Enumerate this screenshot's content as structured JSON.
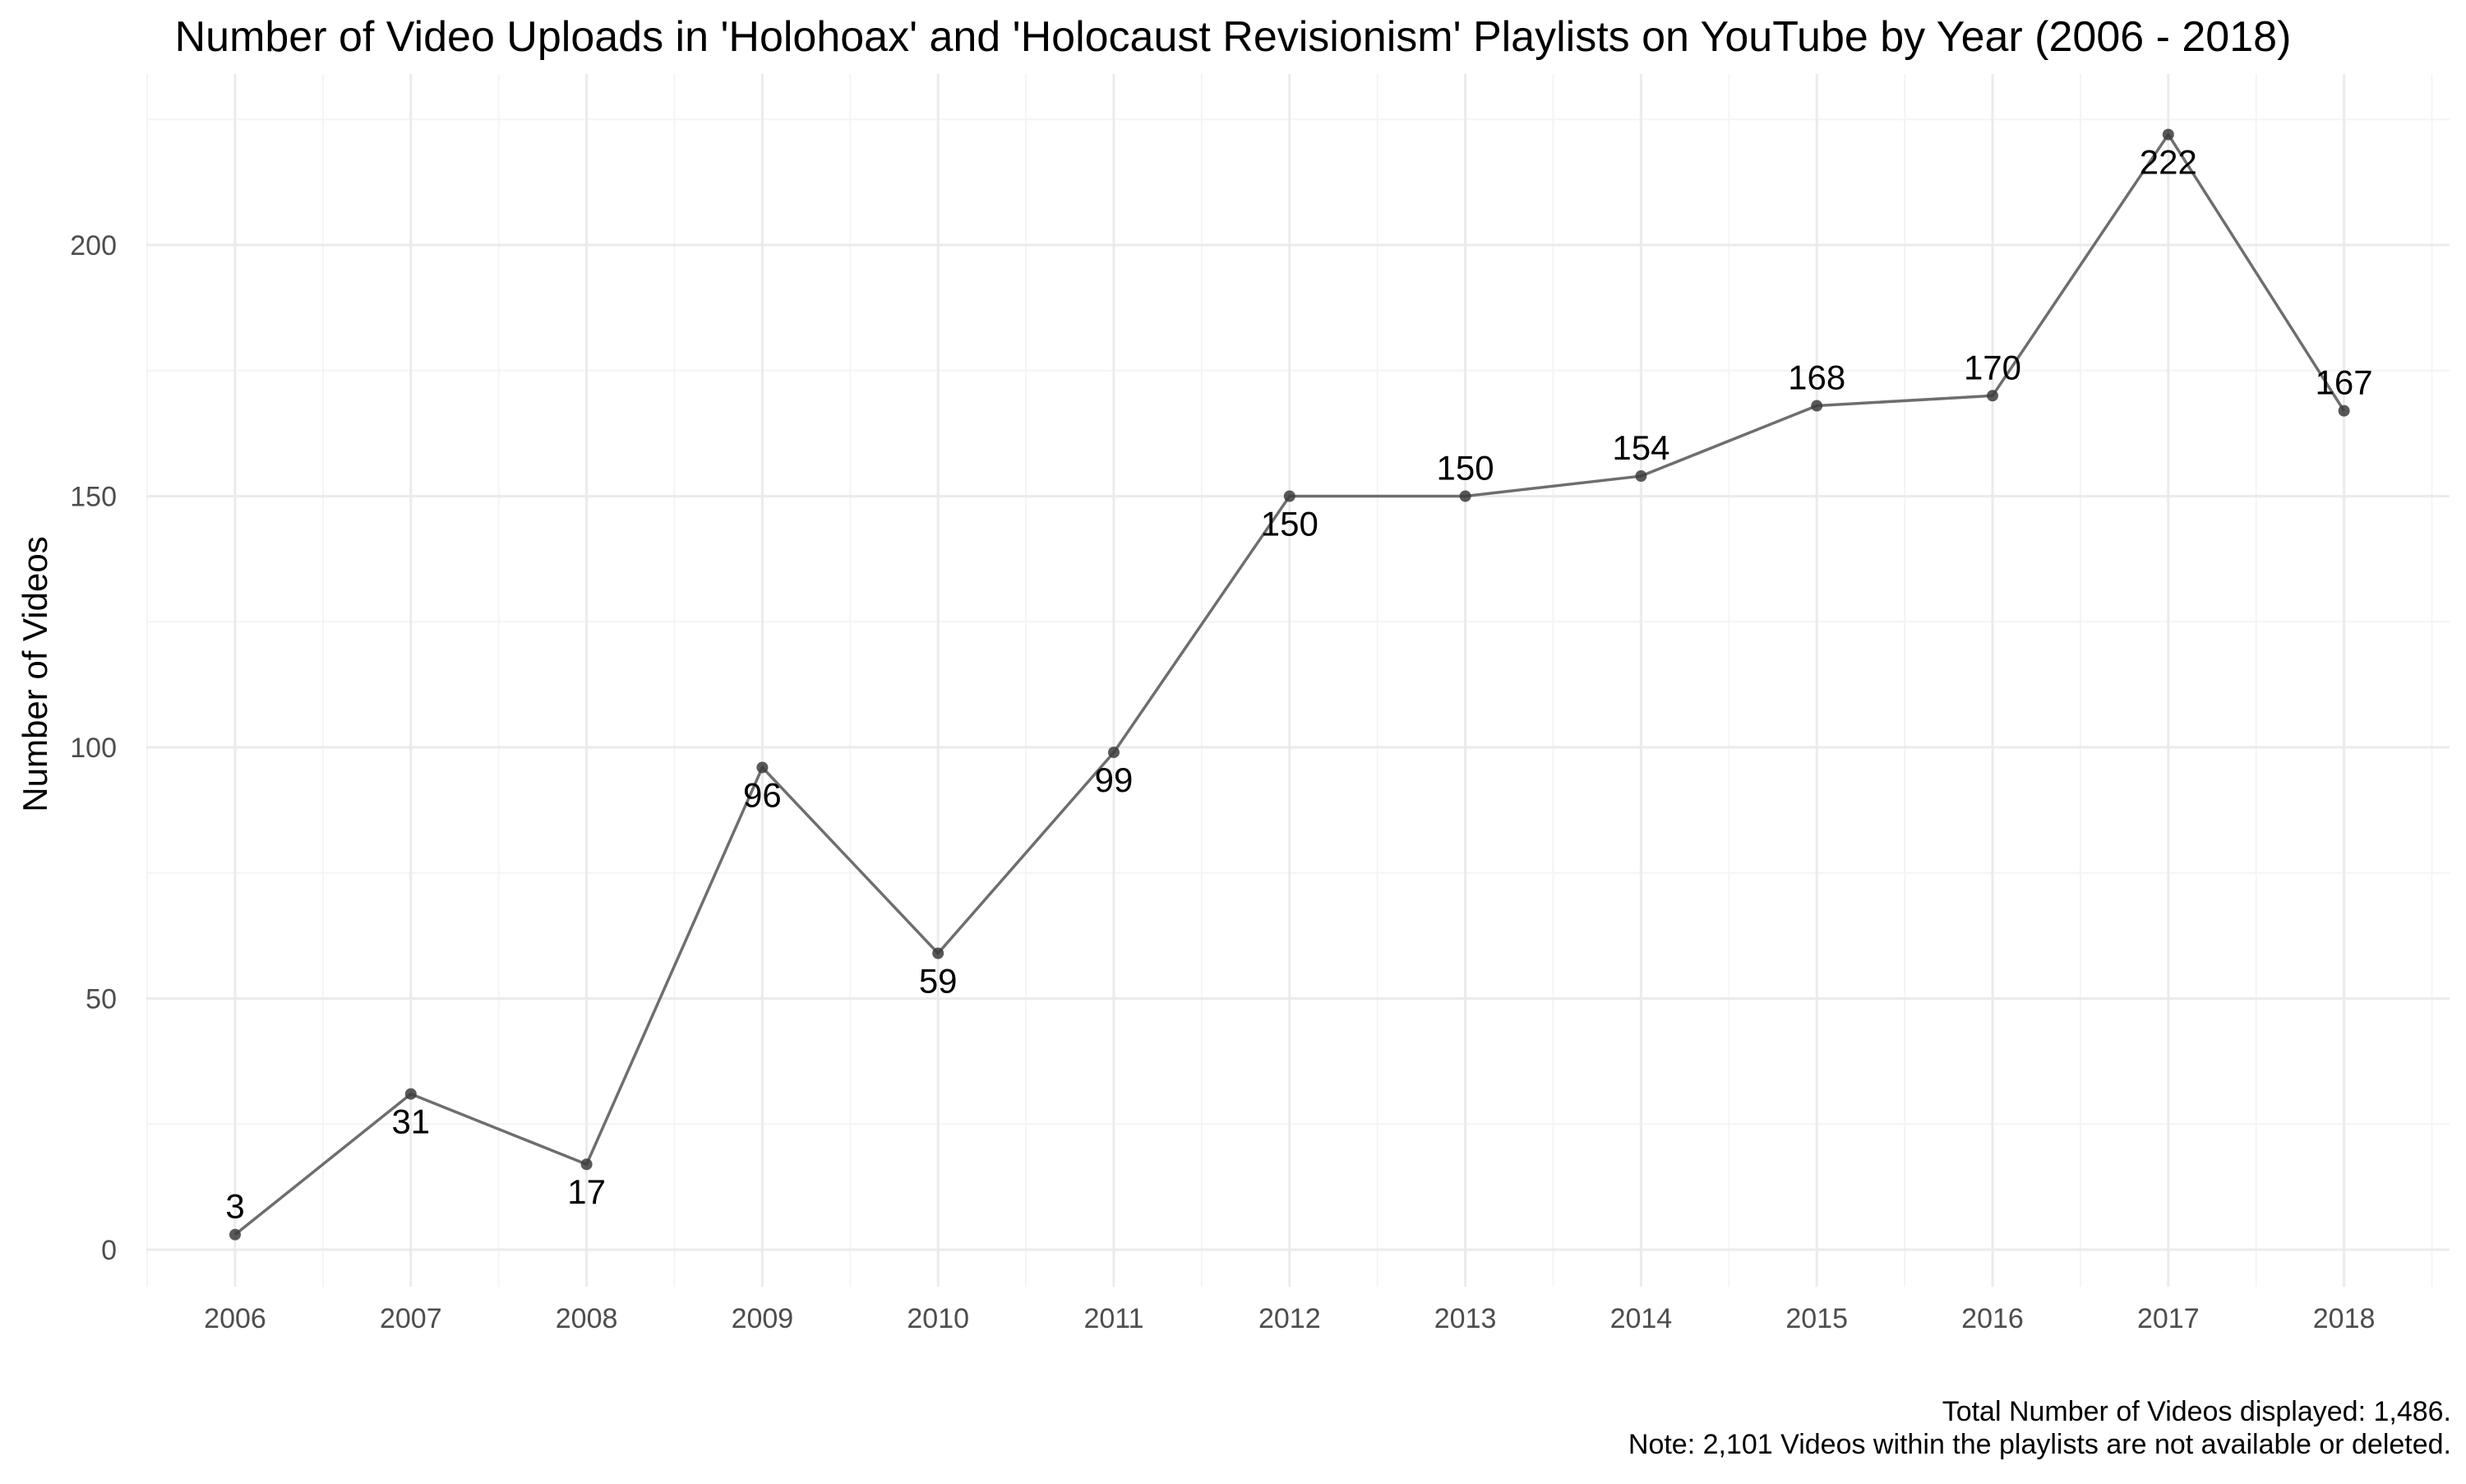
{
  "chart_data": {
    "type": "line",
    "title": "Number of Video Uploads in 'Holohoax' and 'Holocaust Revisionism' Playlists on YouTube by Year (2006 - 2018)",
    "xlabel": "",
    "ylabel": "Number of Videos",
    "categories": [
      "2006",
      "2007",
      "2008",
      "2009",
      "2010",
      "2011",
      "2012",
      "2013",
      "2014",
      "2015",
      "2016",
      "2017",
      "2018"
    ],
    "values": [
      3,
      31,
      17,
      96,
      59,
      99,
      150,
      150,
      154,
      168,
      170,
      222,
      167
    ],
    "data_labels": [
      "3",
      "31",
      "17",
      "96",
      "59",
      "99",
      "150",
      "150",
      "154",
      "168",
      "170",
      "222",
      "167"
    ],
    "label_position": [
      "above",
      "below",
      "below",
      "below",
      "below",
      "below",
      "below",
      "above",
      "above",
      "above",
      "above",
      "below",
      "above"
    ],
    "yticks": [
      0,
      50,
      100,
      150,
      200
    ],
    "ylim": [
      -7.5,
      232.5
    ],
    "grid": true,
    "legend": "none",
    "line_color": "#6e6e6e",
    "point_color": "#3c3c3c",
    "caption": [
      "Total Number of Videos displayed: 1,486.",
      "Note: 2,101 Videos within the playlists are not available or deleted."
    ]
  }
}
